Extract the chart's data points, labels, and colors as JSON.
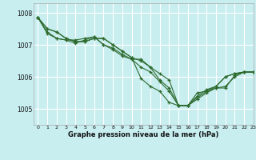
{
  "title": "Graphe pression niveau de la mer (hPa)",
  "background_color": "#c8eef0",
  "grid_color": "#ffffff",
  "line_color": "#2d6a2d",
  "marker_color": "#2d6a2d",
  "xlim": [
    -0.5,
    23
  ],
  "ylim": [
    1004.5,
    1008.3
  ],
  "yticks": [
    1005,
    1006,
    1007,
    1008
  ],
  "xticks": [
    0,
    1,
    2,
    3,
    4,
    5,
    6,
    7,
    8,
    9,
    10,
    11,
    12,
    13,
    14,
    15,
    16,
    17,
    18,
    19,
    20,
    21,
    22,
    23
  ],
  "series": [
    [
      1007.85,
      1007.5,
      1007.4,
      1007.2,
      1007.1,
      1007.1,
      1007.2,
      1007.2,
      1007.0,
      1006.8,
      1006.6,
      1006.5,
      1006.3,
      1006.1,
      1005.9,
      1005.1,
      1005.1,
      1005.4,
      1005.6,
      1005.7,
      1006.0,
      1006.1,
      1006.15,
      1006.15
    ],
    [
      1007.85,
      1007.5,
      1007.4,
      1007.2,
      1007.1,
      1007.1,
      1007.2,
      1007.2,
      1007.0,
      1006.8,
      1006.6,
      1005.95,
      1005.7,
      1005.55,
      1005.2,
      1005.1,
      1005.1,
      1005.5,
      1005.55,
      1005.7,
      1006.0,
      1006.1,
      1006.15,
      1006.15
    ],
    [
      1007.85,
      1007.4,
      1007.2,
      1007.15,
      1007.15,
      1007.2,
      1007.25,
      1007.0,
      1006.9,
      1006.7,
      1006.55,
      1006.55,
      1006.3,
      1005.9,
      1005.65,
      1005.1,
      1005.1,
      1005.35,
      1005.55,
      1005.65,
      1005.7,
      1006.0,
      1006.15,
      1006.15
    ],
    [
      1007.85,
      1007.35,
      1007.2,
      1007.15,
      1007.05,
      1007.15,
      1007.25,
      1007.0,
      1006.85,
      1006.65,
      1006.55,
      1006.3,
      1006.15,
      1005.85,
      1005.55,
      1005.1,
      1005.1,
      1005.3,
      1005.5,
      1005.65,
      1005.65,
      1006.05,
      1006.15,
      1006.15
    ]
  ]
}
